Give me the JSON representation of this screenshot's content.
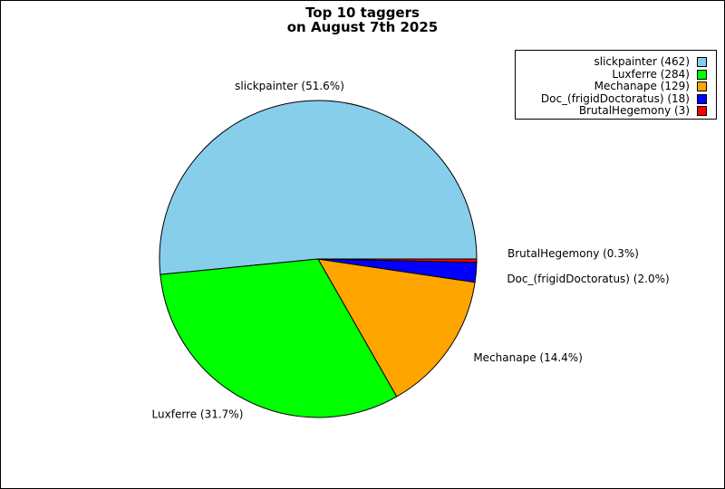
{
  "chart_data": {
    "type": "pie",
    "title_line1": "Top 10 taggers",
    "title_line2": "on August 7th 2025",
    "slices": [
      {
        "name": "slickpainter",
        "count": 462,
        "percent": 51.6,
        "color": "#87ceeb",
        "legend_label": "slickpainter (462)",
        "slice_label": "slickpainter (51.6%)"
      },
      {
        "name": "Luxferre",
        "count": 284,
        "percent": 31.7,
        "color": "#00ff00",
        "legend_label": "Luxferre (284)",
        "slice_label": "Luxferre (31.7%)"
      },
      {
        "name": "Mechanape",
        "count": 129,
        "percent": 14.4,
        "color": "#ffa500",
        "legend_label": "Mechanape (129)",
        "slice_label": "Mechanape (14.4%)"
      },
      {
        "name": "Doc_(frigidDoctoratus)",
        "count": 18,
        "percent": 2.0,
        "color": "#0000ff",
        "legend_label": "Doc_(frigidDoctoratus) (18)",
        "slice_label": "Doc_(frigidDoctoratus) (2.0%)"
      },
      {
        "name": "BrutalHegemony",
        "count": 3,
        "percent": 0.3,
        "color": "#ff0000",
        "legend_label": "BrutalHegemony (3)",
        "slice_label": "BrutalHegemony (0.3%)"
      }
    ],
    "start_angle_deg": 0,
    "direction": "counterclockwise",
    "legend_position": "top-right"
  }
}
